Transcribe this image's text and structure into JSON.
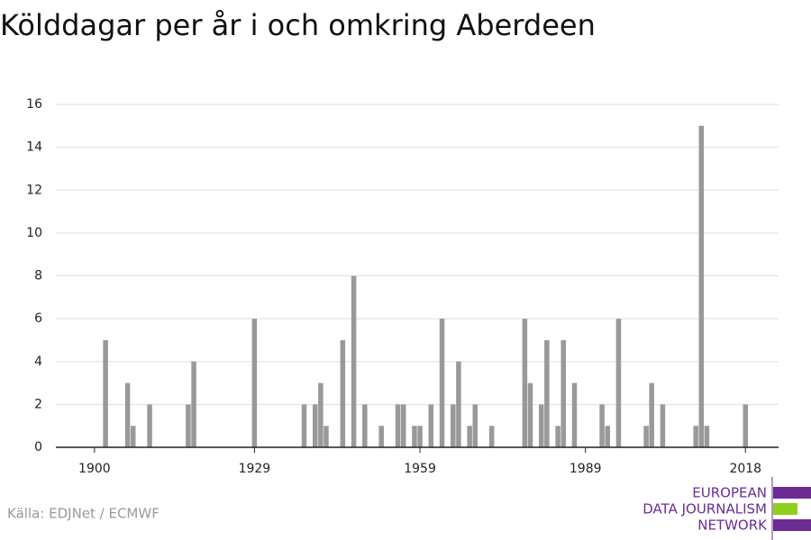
{
  "chart_data": {
    "type": "bar",
    "title": "Kölddagar per år i och omkring Aberdeen",
    "source": "Källa: EDJNet / ECMWF",
    "logo": [
      "EUROPEAN",
      "DATA JOURNALISM",
      "NETWORK"
    ],
    "x": [
      1902,
      1906,
      1907,
      1910,
      1917,
      1918,
      1929,
      1938,
      1940,
      1941,
      1942,
      1945,
      1947,
      1949,
      1952,
      1955,
      1956,
      1958,
      1959,
      1961,
      1963,
      1965,
      1966,
      1968,
      1969,
      1972,
      1978,
      1979,
      1981,
      1982,
      1984,
      1985,
      1987,
      1992,
      1993,
      1995,
      2000,
      2001,
      2003,
      2009,
      2010,
      2011,
      2018
    ],
    "values": [
      5,
      3,
      1,
      2,
      2,
      4,
      6,
      2,
      2,
      3,
      1,
      5,
      8,
      2,
      1,
      2,
      2,
      1,
      1,
      2,
      6,
      2,
      4,
      1,
      2,
      1,
      6,
      3,
      2,
      5,
      1,
      5,
      3,
      2,
      1,
      6,
      1,
      3,
      2,
      1,
      15,
      1,
      2
    ],
    "color": "#999999",
    "xlim": [
      1893,
      2024
    ],
    "xticks": [
      1900,
      1929,
      1959,
      1989,
      2018
    ],
    "ylim": [
      0,
      16
    ],
    "yticks": [
      0,
      2,
      4,
      6,
      8,
      10,
      12,
      14,
      16
    ],
    "grid": true
  }
}
